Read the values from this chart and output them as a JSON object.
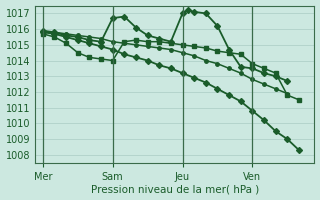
{
  "bg_color": "#cce8e0",
  "grid_color": "#aaccC4",
  "line_color": "#1a5c2a",
  "xlabel": "Pression niveau de la mer( hPa )",
  "ylim": [
    1007.5,
    1017.5
  ],
  "yticks": [
    1008,
    1009,
    1010,
    1011,
    1012,
    1013,
    1014,
    1015,
    1016,
    1017
  ],
  "xtick_labels": [
    "Mer",
    "Sam",
    "Jeu",
    "Ven"
  ],
  "xtick_positions": [
    0,
    36,
    72,
    108
  ],
  "vline_positions": [
    0,
    36,
    72,
    108
  ],
  "xlim": [
    -4,
    140
  ],
  "series": [
    {
      "x": [
        0,
        6,
        12,
        18,
        24,
        30,
        36,
        42,
        48,
        54,
        60,
        66,
        72,
        78,
        84,
        90,
        96,
        102,
        108,
        114,
        120,
        126,
        132
      ],
      "y": [
        1015.8,
        1015.7,
        1015.5,
        1015.3,
        1015.1,
        1014.9,
        1014.7,
        1014.4,
        1014.2,
        1014.0,
        1013.7,
        1013.5,
        1013.2,
        1012.9,
        1012.6,
        1012.2,
        1011.8,
        1011.4,
        1010.8,
        1010.2,
        1009.5,
        1009.0,
        1008.3
      ],
      "marker": "D",
      "markersize": 3.0,
      "linewidth": 1.3
    },
    {
      "x": [
        0,
        6,
        12,
        18,
        24,
        30,
        36,
        42,
        48,
        54,
        60,
        66,
        72,
        78,
        84,
        90,
        96,
        102,
        108,
        114,
        120,
        126
      ],
      "y": [
        1015.8,
        1015.8,
        1015.7,
        1015.6,
        1015.5,
        1015.4,
        1015.2,
        1015.1,
        1015.0,
        1014.9,
        1014.8,
        1014.7,
        1014.5,
        1014.3,
        1014.0,
        1013.8,
        1013.5,
        1013.2,
        1012.8,
        1012.5,
        1012.2,
        1011.9
      ],
      "marker": "o",
      "markersize": 2.5,
      "linewidth": 1.1
    },
    {
      "x": [
        0,
        6,
        12,
        18,
        24,
        30,
        36,
        42,
        48,
        54,
        60,
        66,
        72,
        75,
        78,
        84,
        90,
        96,
        102,
        108,
        114,
        120,
        126
      ],
      "y": [
        1015.9,
        1015.8,
        1015.6,
        1015.5,
        1015.3,
        1015.2,
        1016.7,
        1016.8,
        1016.1,
        1015.6,
        1015.4,
        1015.2,
        1017.0,
        1017.2,
        1017.1,
        1017.0,
        1016.2,
        1014.7,
        1013.6,
        1013.5,
        1013.2,
        1013.0,
        1012.7
      ],
      "marker": "D",
      "markersize": 3.0,
      "linewidth": 1.3
    },
    {
      "x": [
        0,
        6,
        12,
        18,
        24,
        30,
        36,
        42,
        48,
        54,
        60,
        66,
        72,
        78,
        84,
        90,
        96,
        102,
        108,
        114,
        120,
        126,
        132
      ],
      "y": [
        1015.7,
        1015.5,
        1015.1,
        1014.5,
        1014.2,
        1014.1,
        1014.0,
        1015.2,
        1015.3,
        1015.2,
        1015.2,
        1015.1,
        1015.0,
        1014.9,
        1014.8,
        1014.6,
        1014.5,
        1014.4,
        1013.8,
        1013.5,
        1013.2,
        1011.8,
        1011.5
      ],
      "marker": "s",
      "markersize": 2.5,
      "linewidth": 1.1
    }
  ]
}
